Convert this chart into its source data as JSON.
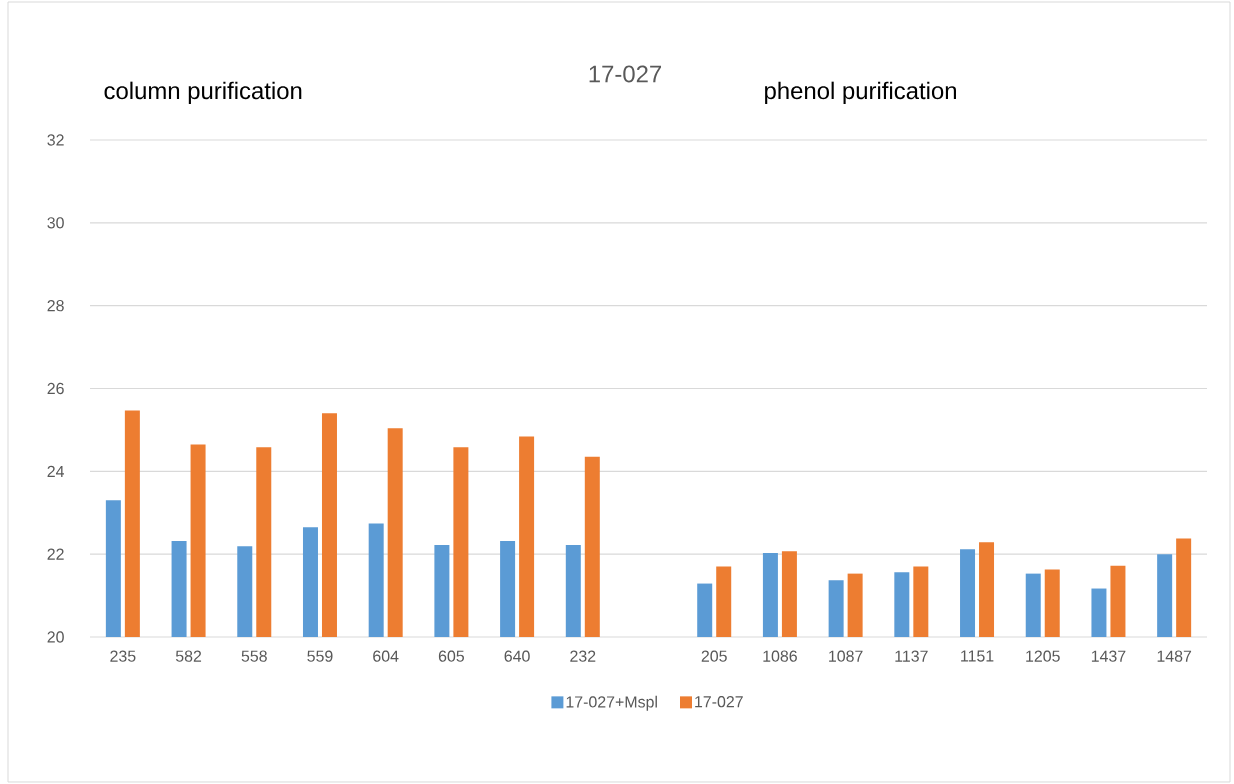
{
  "chart_data": {
    "type": "bar",
    "title": "17-027",
    "annotations": [
      "column purification",
      "phenol purification"
    ],
    "categories": [
      "235",
      "582",
      "558",
      "559",
      "604",
      "605",
      "640",
      "232",
      null,
      "205",
      "1086",
      "1087",
      "1137",
      "1151",
      "1205",
      "1437",
      "1487"
    ],
    "series": [
      {
        "name": "17-027+Mspl",
        "color": "#5b9bd5",
        "values": [
          23.3,
          22.32,
          22.19,
          22.65,
          22.74,
          22.22,
          22.32,
          22.22,
          null,
          21.29,
          22.03,
          21.37,
          21.56,
          22.12,
          21.53,
          21.17,
          22.0
        ]
      },
      {
        "name": "17-027",
        "color": "#ed7d31",
        "values": [
          25.47,
          24.65,
          24.58,
          25.4,
          25.04,
          24.58,
          24.84,
          24.35,
          null,
          21.7,
          22.07,
          21.53,
          21.7,
          22.29,
          21.63,
          21.72,
          22.38
        ]
      }
    ],
    "ylim": [
      20,
      32
    ],
    "yticks": [
      20,
      22,
      24,
      26,
      28,
      30,
      32
    ],
    "grid": "y",
    "legend": "bottom"
  }
}
